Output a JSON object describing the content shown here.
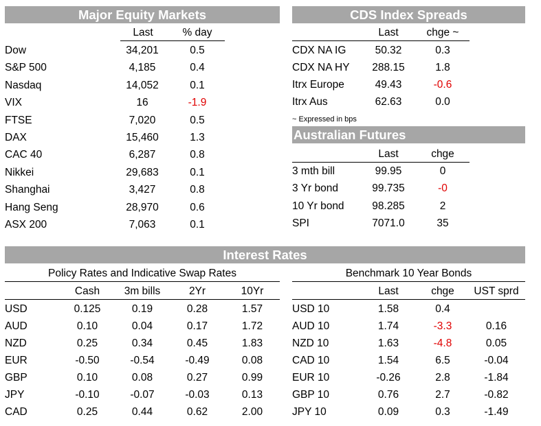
{
  "equity": {
    "title": "Major Equity Markets",
    "headers": [
      "Last",
      "% day"
    ],
    "rows": [
      {
        "name": "Dow",
        "last": "34,201",
        "day": "0.5"
      },
      {
        "name": "S&P 500",
        "last": "4,185",
        "day": "0.4"
      },
      {
        "name": "Nasdaq",
        "last": "14,052",
        "day": "0.1"
      },
      {
        "name": "VIX",
        "last": "16",
        "day": "-1.9"
      },
      {
        "name": "FTSE",
        "last": "7,020",
        "day": "0.5"
      },
      {
        "name": "DAX",
        "last": "15,460",
        "day": "1.3"
      },
      {
        "name": "CAC 40",
        "last": "6,287",
        "day": "0.8"
      },
      {
        "name": "Nikkei",
        "last": "29,683",
        "day": "0.1"
      },
      {
        "name": "Shanghai",
        "last": "3,427",
        "day": "0.8"
      },
      {
        "name": "Hang Seng",
        "last": "28,970",
        "day": "0.6"
      },
      {
        "name": "ASX 200",
        "last": "7,063",
        "day": "0.1"
      }
    ]
  },
  "cds": {
    "title": "CDS Index Spreads",
    "headers": [
      "Last",
      "chge ~"
    ],
    "rows": [
      {
        "name": "CDX NA IG",
        "last": "50.32",
        "chge": "0.3"
      },
      {
        "name": "CDX NA HY",
        "last": "288.15",
        "chge": "1.8"
      },
      {
        "name": "Itrx Europe",
        "last": "49.43",
        "chge": "-0.6"
      },
      {
        "name": "Itrx Aus",
        "last": "62.63",
        "chge": "0.0"
      }
    ],
    "note": "~ Expressed in bps"
  },
  "futures": {
    "title": "Australian Futures",
    "headers": [
      "Last",
      "chge"
    ],
    "rows": [
      {
        "name": "3 mth bill",
        "last": "99.95",
        "chge": "0"
      },
      {
        "name": "3 Yr bond",
        "last": "99.735",
        "chge": "-0"
      },
      {
        "name": "10 Yr bond",
        "last": "98.285",
        "chge": "2"
      },
      {
        "name": "SPI",
        "last": "7071.0",
        "chge": "35"
      }
    ]
  },
  "rates": {
    "title": "Interest Rates",
    "policy": {
      "subtitle": "Policy Rates and Indicative Swap Rates",
      "headers": [
        "Cash",
        "3m bills",
        "2Yr",
        "10Yr"
      ],
      "rows": [
        {
          "name": "USD",
          "cash": "0.125",
          "bills": "0.19",
          "y2": "0.28",
          "y10": "1.57"
        },
        {
          "name": "AUD",
          "cash": "0.10",
          "bills": "0.04",
          "y2": "0.17",
          "y10": "1.72"
        },
        {
          "name": "NZD",
          "cash": "0.25",
          "bills": "0.34",
          "y2": "0.45",
          "y10": "1.83"
        },
        {
          "name": "EUR",
          "cash": "-0.50",
          "bills": "-0.54",
          "y2": "-0.49",
          "y10": "0.08"
        },
        {
          "name": "GBP",
          "cash": "0.10",
          "bills": "0.08",
          "y2": "0.27",
          "y10": "0.99"
        },
        {
          "name": "JPY",
          "cash": "-0.10",
          "bills": "-0.07",
          "y2": "-0.03",
          "y10": "0.13"
        },
        {
          "name": "CAD",
          "cash": "0.25",
          "bills": "0.44",
          "y2": "0.62",
          "y10": "2.00"
        }
      ]
    },
    "bonds": {
      "subtitle": "Benchmark 10 Year Bonds",
      "headers": [
        "Last",
        "chge",
        "UST sprd"
      ],
      "rows": [
        {
          "name": "USD 10",
          "last": "1.58",
          "chge": "0.4",
          "sprd": ""
        },
        {
          "name": "AUD 10",
          "last": "1.74",
          "chge": "-3.3",
          "sprd": "0.16"
        },
        {
          "name": "NZD 10",
          "last": "1.63",
          "chge": "-4.8",
          "sprd": "0.05"
        },
        {
          "name": "CAD 10",
          "last": "1.54",
          "chge": "6.5",
          "sprd": "-0.04"
        },
        {
          "name": "EUR 10",
          "last": "-0.26",
          "chge": "2.8",
          "sprd": "-1.84"
        },
        {
          "name": "GBP 10",
          "last": "0.76",
          "chge": "2.7",
          "sprd": "-0.82"
        },
        {
          "name": "JPY 10",
          "last": "0.09",
          "chge": "0.3",
          "sprd": "-1.49"
        }
      ]
    }
  },
  "colors": {
    "header_bar": "#a6a6a6",
    "negative": "#e00000"
  }
}
